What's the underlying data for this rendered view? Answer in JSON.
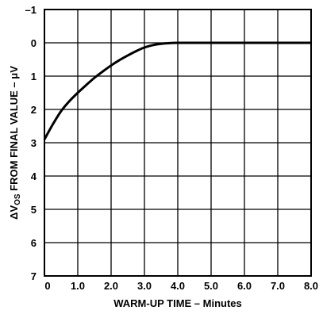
{
  "chart_data": {
    "type": "line",
    "xlabel": "WARM-UP TIME – Minutes",
    "ylabel": {
      "prefix": "ΔV",
      "subscript": "OS",
      "suffix": " FROM FINAL VALUE – μV"
    },
    "xlim": [
      0,
      8
    ],
    "ylim": [
      -1,
      7
    ],
    "y_inverted": true,
    "grid": true,
    "x_ticks": [
      "0",
      "1.0",
      "2.0",
      "3.0",
      "4.0",
      "5.0",
      "6.0",
      "7.0",
      "8.0"
    ],
    "y_ticks": [
      "–1",
      "0",
      "1",
      "2",
      "3",
      "4",
      "5",
      "6",
      "7"
    ],
    "series": [
      {
        "x": [
          0,
          0.25,
          0.5,
          0.75,
          1.0,
          1.25,
          1.5,
          1.75,
          2.0,
          2.25,
          2.5,
          2.75,
          3.0,
          3.25,
          3.5,
          3.75,
          4.0,
          5.0,
          6.0,
          7.0,
          8.0
        ],
        "y": [
          2.9,
          2.45,
          2.05,
          1.75,
          1.5,
          1.27,
          1.05,
          0.86,
          0.68,
          0.52,
          0.38,
          0.25,
          0.14,
          0.07,
          0.03,
          0.01,
          0.0,
          0.0,
          0.0,
          0.0,
          0.0
        ]
      }
    ]
  }
}
